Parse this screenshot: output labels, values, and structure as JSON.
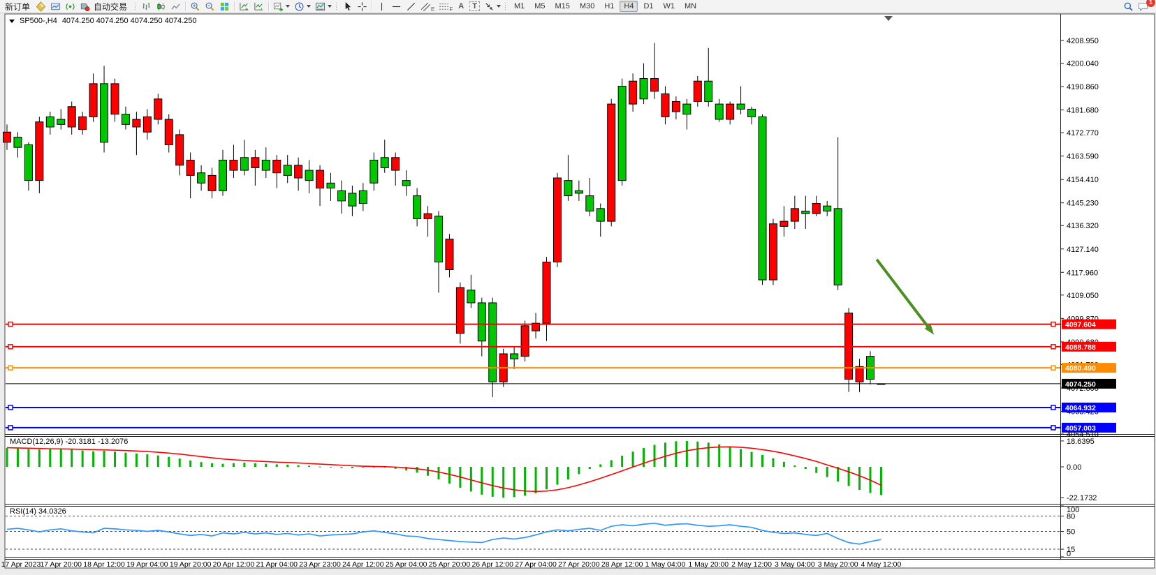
{
  "toolbar": {
    "new_order": "新订单",
    "autotrade": "自动交易",
    "timeframes": [
      "M1",
      "M5",
      "M15",
      "M30",
      "H1",
      "H4",
      "D1",
      "W1",
      "MN"
    ],
    "active_timeframe": "H4",
    "chat_badge": "1",
    "text_tool": "A",
    "label_tool": "T",
    "channel_sub": "E",
    "fibo_sub": "F"
  },
  "chart": {
    "symbol_period": "SP500-,H4",
    "ohlc_display": "4074.250 4074.250 4074.250 4074.250"
  },
  "chart_data": {
    "type": "candlestick",
    "symbol": "SP500-",
    "period": "H4",
    "y_axis_max": 4219.35,
    "y_axis_min": 4054.51,
    "y_ticks": [
      4208.95,
      4200.04,
      4190.86,
      4181.68,
      4172.77,
      4163.59,
      4154.41,
      4145.23,
      4136.32,
      4127.14,
      4117.96,
      4109.05,
      4099.87,
      4090.68,
      4081.79,
      4072.6,
      4063.42,
      4054.51
    ],
    "x_labels": [
      "17 Apr 2023",
      "17 Apr 20:00",
      "18 Apr 12:00",
      "19 Apr 04:00",
      "19 Apr 20:00",
      "20 Apr 12:00",
      "21 Apr 04:00",
      "23 Apr 23:00",
      "24 Apr 12:00",
      "25 Apr 04:00",
      "25 Apr 20:00",
      "26 Apr 12:00",
      "27 Apr 04:00",
      "27 Apr 20:00",
      "28 Apr 12:00",
      "1 May 04:00",
      "1 May 20:00",
      "2 May 12:00",
      "3 May 04:00",
      "3 May 20:00",
      "4 May 12:00"
    ],
    "x_label_start_index": 1,
    "x_label_step": 4,
    "candles": [
      [
        4173,
        4176,
        4166,
        4169
      ],
      [
        4167,
        4173,
        4163,
        4171
      ],
      [
        4154,
        4169,
        4150,
        4168
      ],
      [
        4177,
        4179,
        4149,
        4154
      ],
      [
        4175,
        4181,
        4172,
        4179
      ],
      [
        4176,
        4182,
        4174,
        4178
      ],
      [
        4183,
        4185,
        4172,
        4175
      ],
      [
        4179,
        4181,
        4172,
        4174
      ],
      [
        4192,
        4196,
        4177,
        4179
      ],
      [
        4169,
        4199,
        4165,
        4192
      ],
      [
        4192,
        4194,
        4177,
        4180
      ],
      [
        4176,
        4183,
        4174,
        4180
      ],
      [
        4178,
        4181,
        4164,
        4175
      ],
      [
        4179,
        4182,
        4170,
        4173
      ],
      [
        4186,
        4188,
        4176,
        4178
      ],
      [
        4178,
        4180,
        4165,
        4168
      ],
      [
        4172,
        4174,
        4156,
        4160
      ],
      [
        4162,
        4165,
        4147,
        4156
      ],
      [
        4153,
        4160,
        4150,
        4157
      ],
      [
        4156,
        4159,
        4147,
        4150
      ],
      [
        4150,
        4166,
        4148,
        4162
      ],
      [
        4162,
        4168,
        4155,
        4158
      ],
      [
        4158,
        4170,
        4156,
        4163
      ],
      [
        4163,
        4166,
        4152,
        4159
      ],
      [
        4158,
        4167,
        4155,
        4162
      ],
      [
        4162,
        4164,
        4151,
        4157
      ],
      [
        4156,
        4164,
        4153,
        4160
      ],
      [
        4160,
        4163,
        4150,
        4155
      ],
      [
        4154,
        4162,
        4149,
        4158
      ],
      [
        4158,
        4160,
        4144,
        4151
      ],
      [
        4151,
        4157,
        4146,
        4153
      ],
      [
        4146,
        4154,
        4141,
        4150
      ],
      [
        4144,
        4152,
        4140,
        4149
      ],
      [
        4145,
        4153,
        4142,
        4150
      ],
      [
        4153,
        4165,
        4150,
        4162
      ],
      [
        4159,
        4170,
        4157,
        4163
      ],
      [
        4163,
        4165,
        4152,
        4158
      ],
      [
        4152,
        4158,
        4148,
        4154
      ],
      [
        4139,
        4151,
        4136,
        4148
      ],
      [
        4141,
        4144,
        4132,
        4139
      ],
      [
        4122,
        4142,
        4110,
        4140
      ],
      [
        4131,
        4133,
        4116,
        4119
      ],
      [
        4112,
        4114,
        4090,
        4094
      ],
      [
        4106,
        4117,
        4104,
        4111
      ],
      [
        4091,
        4108,
        4085,
        4106
      ],
      [
        4075,
        4108,
        4069,
        4106
      ],
      [
        4086,
        4088,
        4073,
        4075
      ],
      [
        4084,
        4089,
        4080,
        4086
      ],
      [
        4097,
        4099,
        4083,
        4085
      ],
      [
        4098,
        4102,
        4092,
        4095
      ],
      [
        4122,
        4124,
        4091,
        4098
      ],
      [
        4155,
        4157,
        4120,
        4122
      ],
      [
        4148,
        4164,
        4146,
        4154
      ],
      [
        4149,
        4154,
        4146,
        4150
      ],
      [
        4142,
        4155,
        4140,
        4148
      ],
      [
        4138,
        4145,
        4132,
        4143
      ],
      [
        4184,
        4186,
        4136,
        4138
      ],
      [
        4154,
        4194,
        4152,
        4191
      ],
      [
        4193,
        4196,
        4181,
        4184
      ],
      [
        4186,
        4200,
        4184,
        4194
      ],
      [
        4194,
        4208,
        4186,
        4189
      ],
      [
        4188,
        4191,
        4176,
        4179
      ],
      [
        4185,
        4187,
        4178,
        4181
      ],
      [
        4180,
        4186,
        4174,
        4184
      ],
      [
        4193,
        4195,
        4183,
        4185
      ],
      [
        4185,
        4206,
        4183,
        4193
      ],
      [
        4178,
        4186,
        4177,
        4184
      ],
      [
        4184,
        4185,
        4176,
        4178
      ],
      [
        4182,
        4191,
        4180,
        4184
      ],
      [
        4179,
        4183,
        4176,
        4182
      ],
      [
        4115,
        4180,
        4113,
        4179
      ],
      [
        4137,
        4139,
        4113,
        4115
      ],
      [
        4138,
        4144,
        4132,
        4136
      ],
      [
        4143,
        4148,
        4135,
        4138
      ],
      [
        4141,
        4148,
        4135,
        4142
      ],
      [
        4145,
        4148,
        4140,
        4141
      ],
      [
        4142,
        4146,
        4140,
        4144
      ],
      [
        4113,
        4171,
        4111,
        4143
      ],
      [
        4102,
        4104,
        4071,
        4076
      ],
      [
        4081,
        4084,
        4071,
        4075
      ],
      [
        4076,
        4087,
        4074,
        4085
      ],
      [
        4074.25,
        4074.25,
        4074.25,
        4074.25
      ]
    ],
    "price_lines": [
      {
        "price": 4097.604,
        "label": "4097.604",
        "color": "#ff0000",
        "width": 2,
        "handles": true
      },
      {
        "price": 4088.788,
        "label": "4088.788",
        "color": "#ff0000",
        "width": 2,
        "handles": true
      },
      {
        "price": 4080.49,
        "label": "4080.490",
        "color": "#ff8c00",
        "width": 2,
        "handles": true
      },
      {
        "price": 4074.25,
        "label": "4074.250",
        "color": "#000000",
        "width": 1,
        "handles": false
      },
      {
        "price": 4064.932,
        "label": "4064.932",
        "color": "#0000ff",
        "width": 2,
        "handles": true
      },
      {
        "price": 4057.003,
        "label": "4057.003",
        "color": "#0000ff",
        "width": 2,
        "handles": true
      }
    ],
    "arrow_annotation": {
      "from_index": 80.6,
      "from_price": 4123.0,
      "to_index": 85.9,
      "to_price": 4093.5,
      "color": "#4a8f22"
    },
    "macd": {
      "label": "MACD(12,26,9)",
      "value": "-20.3181",
      "signal_value": "-13.2076",
      "ticks": [
        [
          "18.6395",
          18.6395
        ],
        [
          "0.00",
          0
        ],
        [
          "-22.1732",
          -22.1732
        ]
      ],
      "axis_max": 22.1,
      "axis_min": -26.6,
      "bar_color": "#00b400",
      "signal_color": "#ff0000",
      "histogram": [
        13.5,
        13.2,
        12.8,
        12.5,
        12.8,
        13.0,
        12.4,
        11.8,
        11.2,
        11.6,
        11.0,
        10.2,
        9.6,
        9.0,
        8.2,
        7.2,
        6.0,
        4.6,
        3.4,
        2.6,
        2.2,
        2.6,
        3.0,
        2.6,
        2.2,
        1.8,
        1.6,
        1.2,
        0.8,
        0.2,
        -0.4,
        -0.8,
        -1.0,
        -0.6,
        -0.2,
        -0.6,
        -1.4,
        -2.6,
        -4.2,
        -6.4,
        -9.0,
        -12.0,
        -15.0,
        -17.8,
        -20.0,
        -21.5,
        -22.2,
        -21.8,
        -20.8,
        -19.0,
        -16.2,
        -12.8,
        -9.0,
        -5.2,
        -1.6,
        1.8,
        4.8,
        8.0,
        11.0,
        13.6,
        15.8,
        17.4,
        18.4,
        18.6,
        18.2,
        17.4,
        16.2,
        14.6,
        12.8,
        10.8,
        8.6,
        6.2,
        3.6,
        1.0,
        -1.6,
        -4.4,
        -7.4,
        -10.6,
        -13.8,
        -16.6,
        -18.8,
        -20.3
      ],
      "signal": [
        13.8,
        13.6,
        13.4,
        13.2,
        13.0,
        12.9,
        12.8,
        12.6,
        12.4,
        12.2,
        12.0,
        11.7,
        11.4,
        11.0,
        10.5,
        9.9,
        9.2,
        8.3,
        7.4,
        6.5,
        5.7,
        5.1,
        4.6,
        4.2,
        3.8,
        3.4,
        3.1,
        2.8,
        2.4,
        2.0,
        1.6,
        1.2,
        0.8,
        0.5,
        0.3,
        0.1,
        -0.2,
        -0.7,
        -1.4,
        -2.4,
        -3.7,
        -5.4,
        -7.3,
        -9.4,
        -11.5,
        -13.5,
        -15.2,
        -16.5,
        -17.4,
        -17.7,
        -17.4,
        -16.5,
        -15.0,
        -13.0,
        -10.7,
        -8.2,
        -5.6,
        -2.9,
        -0.1,
        2.6,
        5.2,
        7.6,
        9.8,
        11.6,
        12.9,
        13.8,
        14.3,
        14.4,
        14.1,
        13.4,
        12.4,
        11.2,
        9.7,
        7.9,
        6.0,
        3.9,
        1.4,
        -1.0,
        -3.6,
        -6.4,
        -9.6,
        -13.2
      ]
    },
    "rsi": {
      "label": "RSI(14)",
      "value": "34.0326",
      "ticks": [
        100,
        80,
        50,
        15,
        0
      ],
      "levels": [
        80,
        50,
        15
      ],
      "line_color": "#2f97ff",
      "values": [
        54,
        56,
        53,
        49,
        53,
        55,
        51,
        49,
        47,
        56,
        55,
        53,
        52,
        50,
        52,
        49,
        45,
        42,
        44,
        41,
        47,
        45,
        48,
        45,
        47,
        44,
        46,
        43,
        45,
        41,
        43,
        44,
        45,
        49,
        51,
        48,
        45,
        41,
        40,
        36,
        34,
        32,
        30,
        29,
        28,
        34,
        37,
        35,
        38,
        43,
        49,
        53,
        51,
        54,
        56,
        52,
        60,
        63,
        61,
        64,
        66,
        62,
        64,
        65,
        62,
        60,
        61,
        63,
        60,
        58,
        52,
        48,
        46,
        47,
        44,
        42,
        46,
        36,
        28,
        25,
        30,
        34
      ]
    },
    "colors": {
      "candle_up": "#00c800",
      "candle_down": "#ff0000",
      "outline": "#000000",
      "background": "#ffffff"
    }
  }
}
